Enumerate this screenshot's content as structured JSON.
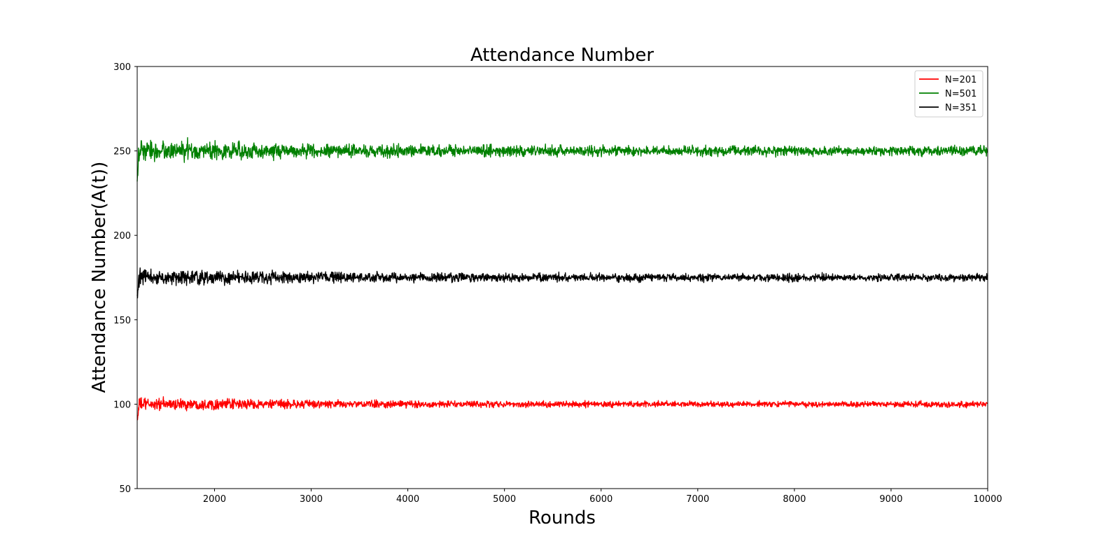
{
  "chart_data": {
    "type": "line",
    "title": "Attendance Number",
    "xlabel": "Rounds",
    "ylabel": "Attendance Number(A(t))",
    "xlim": [
      1200,
      10000
    ],
    "ylim": [
      50,
      300
    ],
    "x_ticks": [
      2000,
      3000,
      4000,
      5000,
      6000,
      7000,
      8000,
      9000,
      10000
    ],
    "y_ticks": [
      50,
      100,
      150,
      200,
      250,
      300
    ],
    "grid": false,
    "legend_position": "top-right",
    "series": [
      {
        "name": "N=201",
        "color": "#ff0000",
        "mean": 100,
        "noise_amplitude_start": 3.5,
        "noise_amplitude_end": 1.5,
        "x_range": [
          1200,
          10000
        ]
      },
      {
        "name": "N=501",
        "color": "#008000",
        "mean": 250,
        "noise_amplitude_start": 6,
        "noise_amplitude_end": 2.5,
        "x_range": [
          1200,
          10000
        ]
      },
      {
        "name": "N=351",
        "color": "#000000",
        "mean": 175,
        "noise_amplitude_start": 4.5,
        "noise_amplitude_end": 2,
        "x_range": [
          1200,
          10000
        ]
      }
    ]
  }
}
